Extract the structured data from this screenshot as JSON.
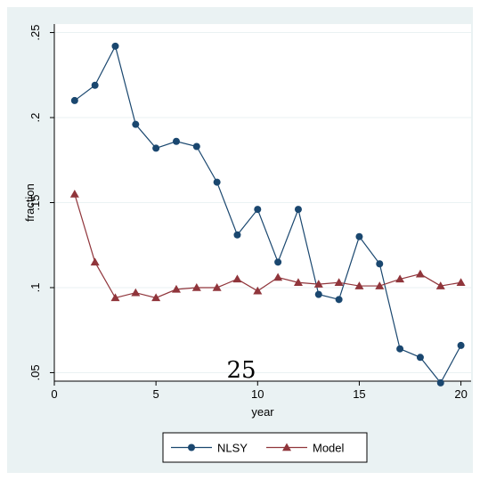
{
  "page_number": "25",
  "chart_data": {
    "type": "line",
    "xlabel": "year",
    "ylabel": "fraction",
    "xlim": [
      0,
      20.5
    ],
    "ylim": [
      0.045,
      0.255
    ],
    "xticks": [
      0,
      5,
      10,
      15,
      20
    ],
    "xtick_labels": [
      "0",
      "5",
      "10",
      "15",
      "20"
    ],
    "yticks": [
      0.05,
      0.1,
      0.15,
      0.2,
      0.25
    ],
    "ytick_labels": [
      ".05",
      ".1",
      ".15",
      ".2",
      ".25"
    ],
    "grid": true,
    "legend": "bottom",
    "x": [
      1,
      2,
      3,
      4,
      5,
      6,
      7,
      8,
      9,
      10,
      11,
      12,
      13,
      14,
      15,
      16,
      17,
      18,
      19,
      20
    ],
    "series": [
      {
        "name": "NLSY",
        "marker": "circle",
        "color": "#1a476f",
        "values": [
          0.21,
          0.219,
          0.242,
          0.196,
          0.182,
          0.186,
          0.183,
          0.162,
          0.131,
          0.146,
          0.115,
          0.146,
          0.096,
          0.093,
          0.13,
          0.114,
          0.064,
          0.059,
          0.044,
          0.066
        ]
      },
      {
        "name": "Model",
        "marker": "triangle",
        "color": "#90353b",
        "values": [
          0.155,
          0.115,
          0.094,
          0.097,
          0.094,
          0.099,
          0.1,
          0.1,
          0.105,
          0.098,
          0.106,
          0.103,
          0.102,
          0.103,
          0.101,
          0.101,
          0.105,
          0.108,
          0.101,
          0.103
        ]
      }
    ]
  },
  "colors": {
    "outer_background": "#eaf2f3",
    "plot_background": "#ffffff",
    "grid": "#eaf2f3"
  }
}
